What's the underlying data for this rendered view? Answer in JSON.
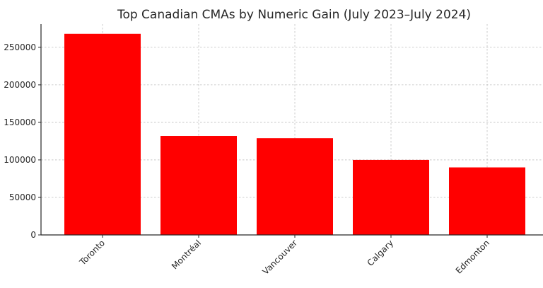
{
  "chart_data": {
    "type": "bar",
    "title": "Top Canadian CMAs by Numeric Gain (July 2023–July 2024)",
    "xlabel": "",
    "ylabel": "",
    "categories": [
      "Toronto",
      "Montréal",
      "Vancouver",
      "Calgary",
      "Edmonton"
    ],
    "values": [
      268000,
      132000,
      129000,
      100000,
      90000
    ],
    "ylim": [
      0,
      281000
    ],
    "yticks": [
      0,
      50000,
      100000,
      150000,
      200000,
      250000
    ],
    "grid": true,
    "legend": "none",
    "bar_color": "#ff0000",
    "x_tick_rotation": 45
  }
}
